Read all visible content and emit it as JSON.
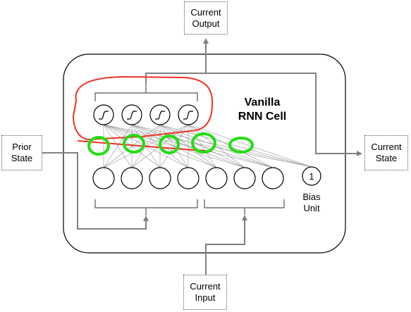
{
  "title": {
    "line1": "Vanilla",
    "line2": "RNN Cell"
  },
  "boxes": {
    "current_output": {
      "line1": "Current",
      "line2": "Output"
    },
    "prior_state": {
      "line1": "Prior",
      "line2": "State"
    },
    "current_state": {
      "line1": "Current",
      "line2": "State"
    },
    "current_input": {
      "line1": "Current",
      "line2": "Input"
    }
  },
  "bias": {
    "value": "1",
    "label_line1": "Bias",
    "label_line2": "Unit"
  },
  "hidden_units": {
    "count": 4,
    "activation_glyph": "sigmoid-icon"
  },
  "input_units": {
    "state_count": 4,
    "input_count": 3
  },
  "highlights": {
    "red_outline_color": "#ee3322",
    "green_circle_color": "#22dd11",
    "green_circle_count": 5
  },
  "colors": {
    "line": "#808080",
    "node_stroke": "#000000"
  }
}
